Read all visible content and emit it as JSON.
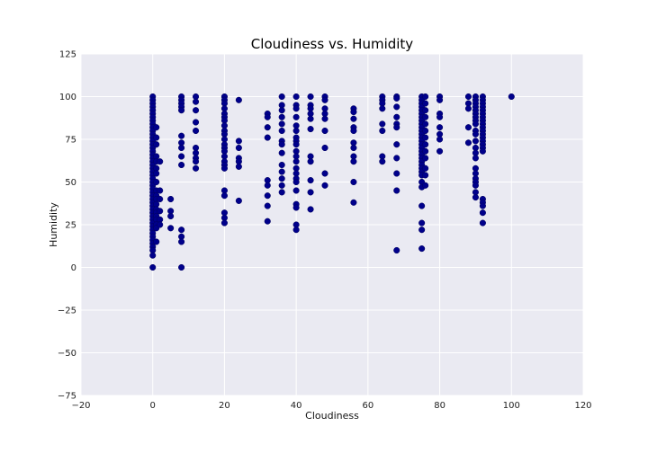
{
  "colors": {
    "plot_background": "#eaeaf2",
    "grid": "#ffffff",
    "marker": "#00008b",
    "marker_edge": "#00005a"
  },
  "chart_data": {
    "type": "scatter",
    "title": "Cloudiness vs. Humidity",
    "xlabel": "Cloudiness",
    "ylabel": "Humidity",
    "xlim": [
      -20,
      120
    ],
    "ylim": [
      -75,
      125
    ],
    "x_ticks": [
      -20,
      0,
      20,
      40,
      60,
      80,
      100,
      120
    ],
    "y_ticks": [
      -75,
      -50,
      -25,
      0,
      25,
      50,
      75,
      100,
      125
    ],
    "x_tick_labels": [
      "−20",
      "0",
      "20",
      "40",
      "60",
      "80",
      "100",
      "120"
    ],
    "y_tick_labels": [
      "−75",
      "−50",
      "−25",
      "0",
      "25",
      "50",
      "75",
      "100",
      "125"
    ],
    "grid": true,
    "legend": "none",
    "points": [
      [
        0,
        100
      ],
      [
        0,
        98
      ],
      [
        0,
        96
      ],
      [
        0,
        94
      ],
      [
        0,
        92
      ],
      [
        0,
        90
      ],
      [
        0,
        88
      ],
      [
        0,
        86
      ],
      [
        0,
        84
      ],
      [
        0,
        82
      ],
      [
        0,
        80
      ],
      [
        0,
        78
      ],
      [
        0,
        76
      ],
      [
        0,
        74
      ],
      [
        0,
        72
      ],
      [
        0,
        70
      ],
      [
        0,
        68
      ],
      [
        0,
        66
      ],
      [
        0,
        64
      ],
      [
        0,
        62
      ],
      [
        0,
        60
      ],
      [
        0,
        58
      ],
      [
        0,
        56
      ],
      [
        0,
        54
      ],
      [
        0,
        52
      ],
      [
        0,
        50
      ],
      [
        0,
        48
      ],
      [
        0,
        46
      ],
      [
        0,
        44
      ],
      [
        0,
        42
      ],
      [
        0,
        40
      ],
      [
        0,
        38
      ],
      [
        0,
        36
      ],
      [
        0,
        34
      ],
      [
        0,
        32
      ],
      [
        0,
        30
      ],
      [
        0,
        28
      ],
      [
        0,
        26
      ],
      [
        0,
        24
      ],
      [
        0,
        22
      ],
      [
        0,
        20
      ],
      [
        0,
        18
      ],
      [
        0,
        16
      ],
      [
        0,
        14
      ],
      [
        0,
        12
      ],
      [
        0,
        10
      ],
      [
        0,
        7
      ],
      [
        0,
        0
      ],
      [
        1,
        82
      ],
      [
        1,
        76
      ],
      [
        1,
        72
      ],
      [
        1,
        65
      ],
      [
        1,
        62
      ],
      [
        1,
        58
      ],
      [
        1,
        55
      ],
      [
        1,
        50
      ],
      [
        1,
        45
      ],
      [
        1,
        42
      ],
      [
        1,
        40
      ],
      [
        1,
        37
      ],
      [
        1,
        34
      ],
      [
        1,
        32
      ],
      [
        1,
        30
      ],
      [
        1,
        28
      ],
      [
        1,
        25
      ],
      [
        1,
        23
      ],
      [
        1,
        15
      ],
      [
        2,
        62
      ],
      [
        2,
        45
      ],
      [
        2,
        40
      ],
      [
        2,
        33
      ],
      [
        2,
        28
      ],
      [
        2,
        25
      ],
      [
        5,
        40
      ],
      [
        5,
        33
      ],
      [
        5,
        30
      ],
      [
        5,
        23
      ],
      [
        8,
        100
      ],
      [
        8,
        98
      ],
      [
        8,
        96
      ],
      [
        8,
        94
      ],
      [
        8,
        92
      ],
      [
        8,
        77
      ],
      [
        8,
        73
      ],
      [
        8,
        70
      ],
      [
        8,
        65
      ],
      [
        8,
        60
      ],
      [
        8,
        22
      ],
      [
        8,
        18
      ],
      [
        8,
        15
      ],
      [
        8,
        0
      ],
      [
        12,
        100
      ],
      [
        12,
        97
      ],
      [
        12,
        92
      ],
      [
        12,
        85
      ],
      [
        12,
        80
      ],
      [
        12,
        70
      ],
      [
        12,
        67
      ],
      [
        12,
        64
      ],
      [
        12,
        62
      ],
      [
        12,
        58
      ],
      [
        20,
        100
      ],
      [
        20,
        98
      ],
      [
        20,
        96
      ],
      [
        20,
        93
      ],
      [
        20,
        90
      ],
      [
        20,
        88
      ],
      [
        20,
        86
      ],
      [
        20,
        83
      ],
      [
        20,
        80
      ],
      [
        20,
        78
      ],
      [
        20,
        75
      ],
      [
        20,
        72
      ],
      [
        20,
        70
      ],
      [
        20,
        68
      ],
      [
        20,
        65
      ],
      [
        20,
        62
      ],
      [
        20,
        60
      ],
      [
        20,
        58
      ],
      [
        20,
        45
      ],
      [
        20,
        42
      ],
      [
        20,
        32
      ],
      [
        20,
        29
      ],
      [
        20,
        26
      ],
      [
        24,
        98
      ],
      [
        24,
        74
      ],
      [
        24,
        70
      ],
      [
        24,
        64
      ],
      [
        24,
        62
      ],
      [
        24,
        59
      ],
      [
        24,
        39
      ],
      [
        32,
        90
      ],
      [
        32,
        88
      ],
      [
        32,
        82
      ],
      [
        32,
        76
      ],
      [
        32,
        51
      ],
      [
        32,
        48
      ],
      [
        32,
        42
      ],
      [
        32,
        36
      ],
      [
        32,
        27
      ],
      [
        36,
        100
      ],
      [
        36,
        95
      ],
      [
        36,
        92
      ],
      [
        36,
        88
      ],
      [
        36,
        84
      ],
      [
        36,
        80
      ],
      [
        36,
        74
      ],
      [
        36,
        72
      ],
      [
        36,
        67
      ],
      [
        36,
        60
      ],
      [
        36,
        56
      ],
      [
        36,
        52
      ],
      [
        36,
        48
      ],
      [
        36,
        44
      ],
      [
        40,
        100
      ],
      [
        40,
        95
      ],
      [
        40,
        93
      ],
      [
        40,
        88
      ],
      [
        40,
        83
      ],
      [
        40,
        80
      ],
      [
        40,
        76
      ],
      [
        40,
        74
      ],
      [
        40,
        72
      ],
      [
        40,
        68
      ],
      [
        40,
        65
      ],
      [
        40,
        62
      ],
      [
        40,
        58
      ],
      [
        40,
        55
      ],
      [
        40,
        52
      ],
      [
        40,
        50
      ],
      [
        40,
        45
      ],
      [
        40,
        37
      ],
      [
        40,
        35
      ],
      [
        40,
        25
      ],
      [
        40,
        22
      ],
      [
        44,
        100
      ],
      [
        44,
        95
      ],
      [
        44,
        93
      ],
      [
        44,
        90
      ],
      [
        44,
        87
      ],
      [
        44,
        81
      ],
      [
        44,
        65
      ],
      [
        44,
        62
      ],
      [
        44,
        51
      ],
      [
        44,
        44
      ],
      [
        44,
        34
      ],
      [
        48,
        100
      ],
      [
        48,
        98
      ],
      [
        48,
        93
      ],
      [
        48,
        90
      ],
      [
        48,
        87
      ],
      [
        48,
        80
      ],
      [
        48,
        70
      ],
      [
        48,
        55
      ],
      [
        48,
        48
      ],
      [
        56,
        93
      ],
      [
        56,
        91
      ],
      [
        56,
        87
      ],
      [
        56,
        82
      ],
      [
        56,
        80
      ],
      [
        56,
        73
      ],
      [
        56,
        70
      ],
      [
        56,
        65
      ],
      [
        56,
        62
      ],
      [
        56,
        50
      ],
      [
        56,
        38
      ],
      [
        64,
        100
      ],
      [
        64,
        98
      ],
      [
        64,
        96
      ],
      [
        64,
        93
      ],
      [
        64,
        84
      ],
      [
        64,
        80
      ],
      [
        64,
        65
      ],
      [
        64,
        62
      ],
      [
        68,
        100
      ],
      [
        68,
        99
      ],
      [
        68,
        94
      ],
      [
        68,
        88
      ],
      [
        68,
        84
      ],
      [
        68,
        82
      ],
      [
        68,
        72
      ],
      [
        68,
        64
      ],
      [
        68,
        55
      ],
      [
        68,
        45
      ],
      [
        68,
        10
      ],
      [
        75,
        100
      ],
      [
        75,
        98
      ],
      [
        75,
        96
      ],
      [
        75,
        94
      ],
      [
        75,
        92
      ],
      [
        75,
        90
      ],
      [
        75,
        88
      ],
      [
        75,
        86
      ],
      [
        75,
        84
      ],
      [
        75,
        82
      ],
      [
        75,
        80
      ],
      [
        75,
        78
      ],
      [
        75,
        76
      ],
      [
        75,
        74
      ],
      [
        75,
        72
      ],
      [
        75,
        70
      ],
      [
        75,
        68
      ],
      [
        75,
        66
      ],
      [
        75,
        64
      ],
      [
        75,
        62
      ],
      [
        75,
        60
      ],
      [
        75,
        58
      ],
      [
        75,
        56
      ],
      [
        75,
        54
      ],
      [
        75,
        50
      ],
      [
        75,
        47
      ],
      [
        75,
        36
      ],
      [
        75,
        26
      ],
      [
        75,
        22
      ],
      [
        75,
        11
      ],
      [
        76,
        100
      ],
      [
        76,
        96
      ],
      [
        76,
        92
      ],
      [
        76,
        88
      ],
      [
        76,
        84
      ],
      [
        76,
        80
      ],
      [
        76,
        76
      ],
      [
        76,
        72
      ],
      [
        76,
        68
      ],
      [
        76,
        64
      ],
      [
        76,
        58
      ],
      [
        76,
        54
      ],
      [
        76,
        48
      ],
      [
        80,
        100
      ],
      [
        80,
        98
      ],
      [
        80,
        90
      ],
      [
        80,
        88
      ],
      [
        80,
        82
      ],
      [
        80,
        78
      ],
      [
        80,
        75
      ],
      [
        80,
        68
      ],
      [
        88,
        100
      ],
      [
        88,
        96
      ],
      [
        88,
        93
      ],
      [
        88,
        82
      ],
      [
        88,
        73
      ],
      [
        90,
        100
      ],
      [
        90,
        98
      ],
      [
        90,
        96
      ],
      [
        90,
        94
      ],
      [
        90,
        92
      ],
      [
        90,
        90
      ],
      [
        90,
        88
      ],
      [
        90,
        86
      ],
      [
        90,
        84
      ],
      [
        90,
        80
      ],
      [
        90,
        78
      ],
      [
        90,
        74
      ],
      [
        90,
        70
      ],
      [
        90,
        67
      ],
      [
        90,
        64
      ],
      [
        90,
        58
      ],
      [
        90,
        55
      ],
      [
        90,
        52
      ],
      [
        90,
        50
      ],
      [
        90,
        48
      ],
      [
        90,
        44
      ],
      [
        90,
        41
      ],
      [
        92,
        100
      ],
      [
        92,
        98
      ],
      [
        92,
        96
      ],
      [
        92,
        94
      ],
      [
        92,
        92
      ],
      [
        92,
        90
      ],
      [
        92,
        88
      ],
      [
        92,
        86
      ],
      [
        92,
        84
      ],
      [
        92,
        82
      ],
      [
        92,
        80
      ],
      [
        92,
        78
      ],
      [
        92,
        76
      ],
      [
        92,
        74
      ],
      [
        92,
        72
      ],
      [
        92,
        70
      ],
      [
        92,
        68
      ],
      [
        92,
        40
      ],
      [
        92,
        38
      ],
      [
        92,
        36
      ],
      [
        92,
        32
      ],
      [
        92,
        26
      ],
      [
        100,
        100
      ]
    ]
  }
}
